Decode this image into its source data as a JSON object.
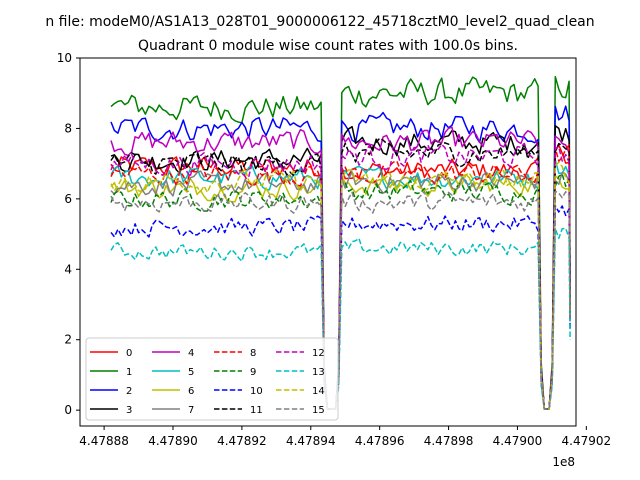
{
  "chart_data": {
    "type": "line",
    "suptitle": "n file: modeM0/AS1A13_028T01_9000006122_45718cztM0_level2_quad_clean",
    "title": "Quadrant 0 module wise count rates with 100.0s bins.",
    "xlabel": "",
    "ylabel": "",
    "x_offset_label": "1e8",
    "xlim": [
      4.478873,
      4.479017
    ],
    "ylim": [
      -0.45,
      10
    ],
    "x_ticks": [
      4.47888,
      4.4789,
      4.47892,
      4.47894,
      4.47896,
      4.47898,
      4.479,
      4.47902
    ],
    "x_tick_labels": [
      "4.47888",
      "4.47890",
      "4.47892",
      "4.47894",
      "4.47896",
      "4.47898",
      "4.47900",
      "4.47902"
    ],
    "y_ticks": [
      0,
      2,
      4,
      6,
      8,
      10
    ],
    "y_tick_labels": [
      "0",
      "2",
      "4",
      "6",
      "8",
      "10"
    ],
    "x_range_note": "x values in units of 1e8 s",
    "segments": [
      [
        4.478882,
        4.478943
      ],
      [
        4.478949,
        4.479006
      ],
      [
        4.479011,
        4.479015
      ]
    ],
    "legend": {
      "placement": "lower-left",
      "columns": 4
    },
    "series": [
      {
        "name": "0",
        "color": "#ff0000",
        "dash": "solid",
        "seg_levels": [
          6.9,
          6.8,
          7.3
        ]
      },
      {
        "name": "1",
        "color": "#008000",
        "dash": "solid",
        "seg_levels": [
          8.6,
          9.0,
          9.2
        ]
      },
      {
        "name": "2",
        "color": "#0000ff",
        "dash": "solid",
        "seg_levels": [
          8.0,
          8.0,
          8.4
        ]
      },
      {
        "name": "3",
        "color": "#000000",
        "dash": "solid",
        "seg_levels": [
          7.1,
          7.6,
          7.9
        ]
      },
      {
        "name": "4",
        "color": "#bf00bf",
        "dash": "solid",
        "seg_levels": [
          7.6,
          7.6,
          7.5
        ]
      },
      {
        "name": "5",
        "color": "#00bfbf",
        "dash": "solid",
        "seg_levels": [
          6.6,
          6.6,
          6.9
        ]
      },
      {
        "name": "6",
        "color": "#bfbf00",
        "dash": "solid",
        "seg_levels": [
          6.3,
          6.4,
          6.6
        ]
      },
      {
        "name": "7",
        "color": "#808080",
        "dash": "solid",
        "seg_levels": [
          6.4,
          6.5,
          6.6
        ]
      },
      {
        "name": "8",
        "color": "#ff0000",
        "dash": "dashed",
        "seg_levels": [
          6.7,
          6.7,
          7.2
        ]
      },
      {
        "name": "9",
        "color": "#008000",
        "dash": "dashed",
        "seg_levels": [
          6.0,
          6.2,
          6.5
        ]
      },
      {
        "name": "10",
        "color": "#0000ff",
        "dash": "dashed",
        "seg_levels": [
          5.2,
          5.3,
          5.7
        ]
      },
      {
        "name": "11",
        "color": "#000000",
        "dash": "dashed",
        "seg_levels": [
          7.0,
          7.3,
          7.6
        ]
      },
      {
        "name": "12",
        "color": "#bf00bf",
        "dash": "dashed",
        "seg_levels": [
          7.0,
          7.2,
          7.2
        ]
      },
      {
        "name": "13",
        "color": "#00bfbf",
        "dash": "dashed",
        "seg_levels": [
          4.5,
          4.6,
          5.0
        ]
      },
      {
        "name": "14",
        "color": "#bfbf00",
        "dash": "dashed",
        "seg_levels": [
          6.5,
          6.5,
          6.8
        ]
      },
      {
        "name": "15",
        "color": "#808080",
        "dash": "dashed",
        "seg_levels": [
          5.9,
          5.9,
          6.3
        ]
      }
    ]
  }
}
